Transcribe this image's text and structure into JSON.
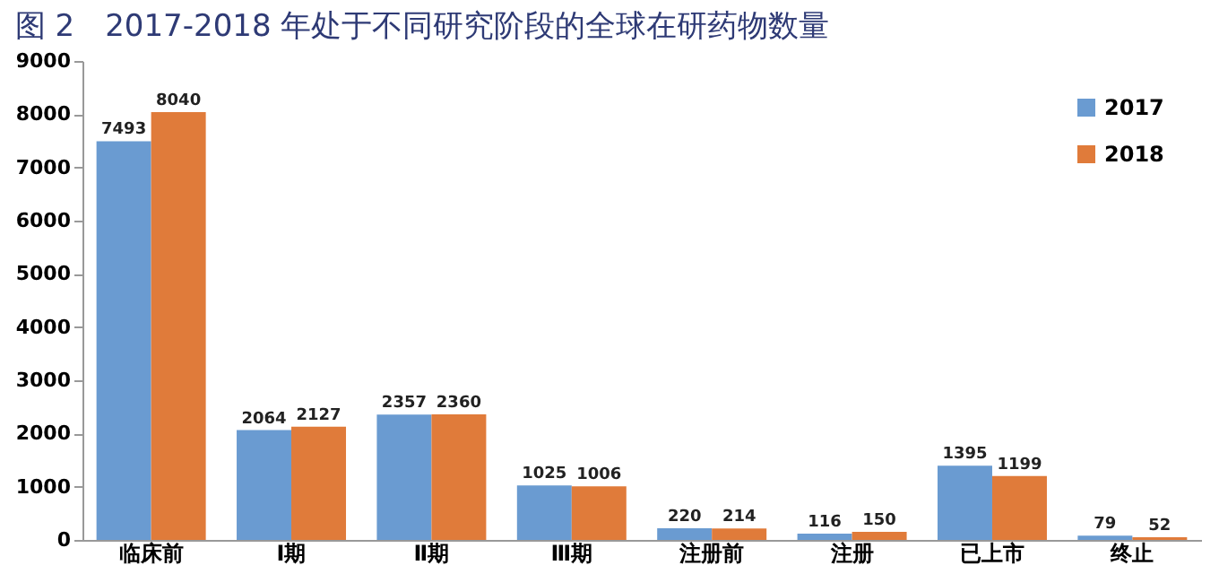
{
  "chart_data": {
    "type": "bar",
    "title": "图 2　2017-2018 年处于不同研究阶段的全球在研药物数量",
    "categories": [
      "临床前",
      "Ⅰ期",
      "Ⅱ期",
      "Ⅲ期",
      "注册前",
      "注册",
      "已上市",
      "终止"
    ],
    "series": [
      {
        "name": "2017",
        "color": "#6a9bd1",
        "values": [
          7493,
          2064,
          2357,
          1025,
          220,
          116,
          1395,
          79
        ]
      },
      {
        "name": "2018",
        "color": "#e07b3a",
        "values": [
          8040,
          2127,
          2360,
          1006,
          214,
          150,
          1199,
          52
        ]
      }
    ],
    "ylim": [
      0,
      9000
    ],
    "yticks": [
      0,
      1000,
      2000,
      3000,
      4000,
      5000,
      6000,
      7000,
      8000,
      9000
    ],
    "data_labels": true,
    "grid": false,
    "legend": "top right"
  }
}
